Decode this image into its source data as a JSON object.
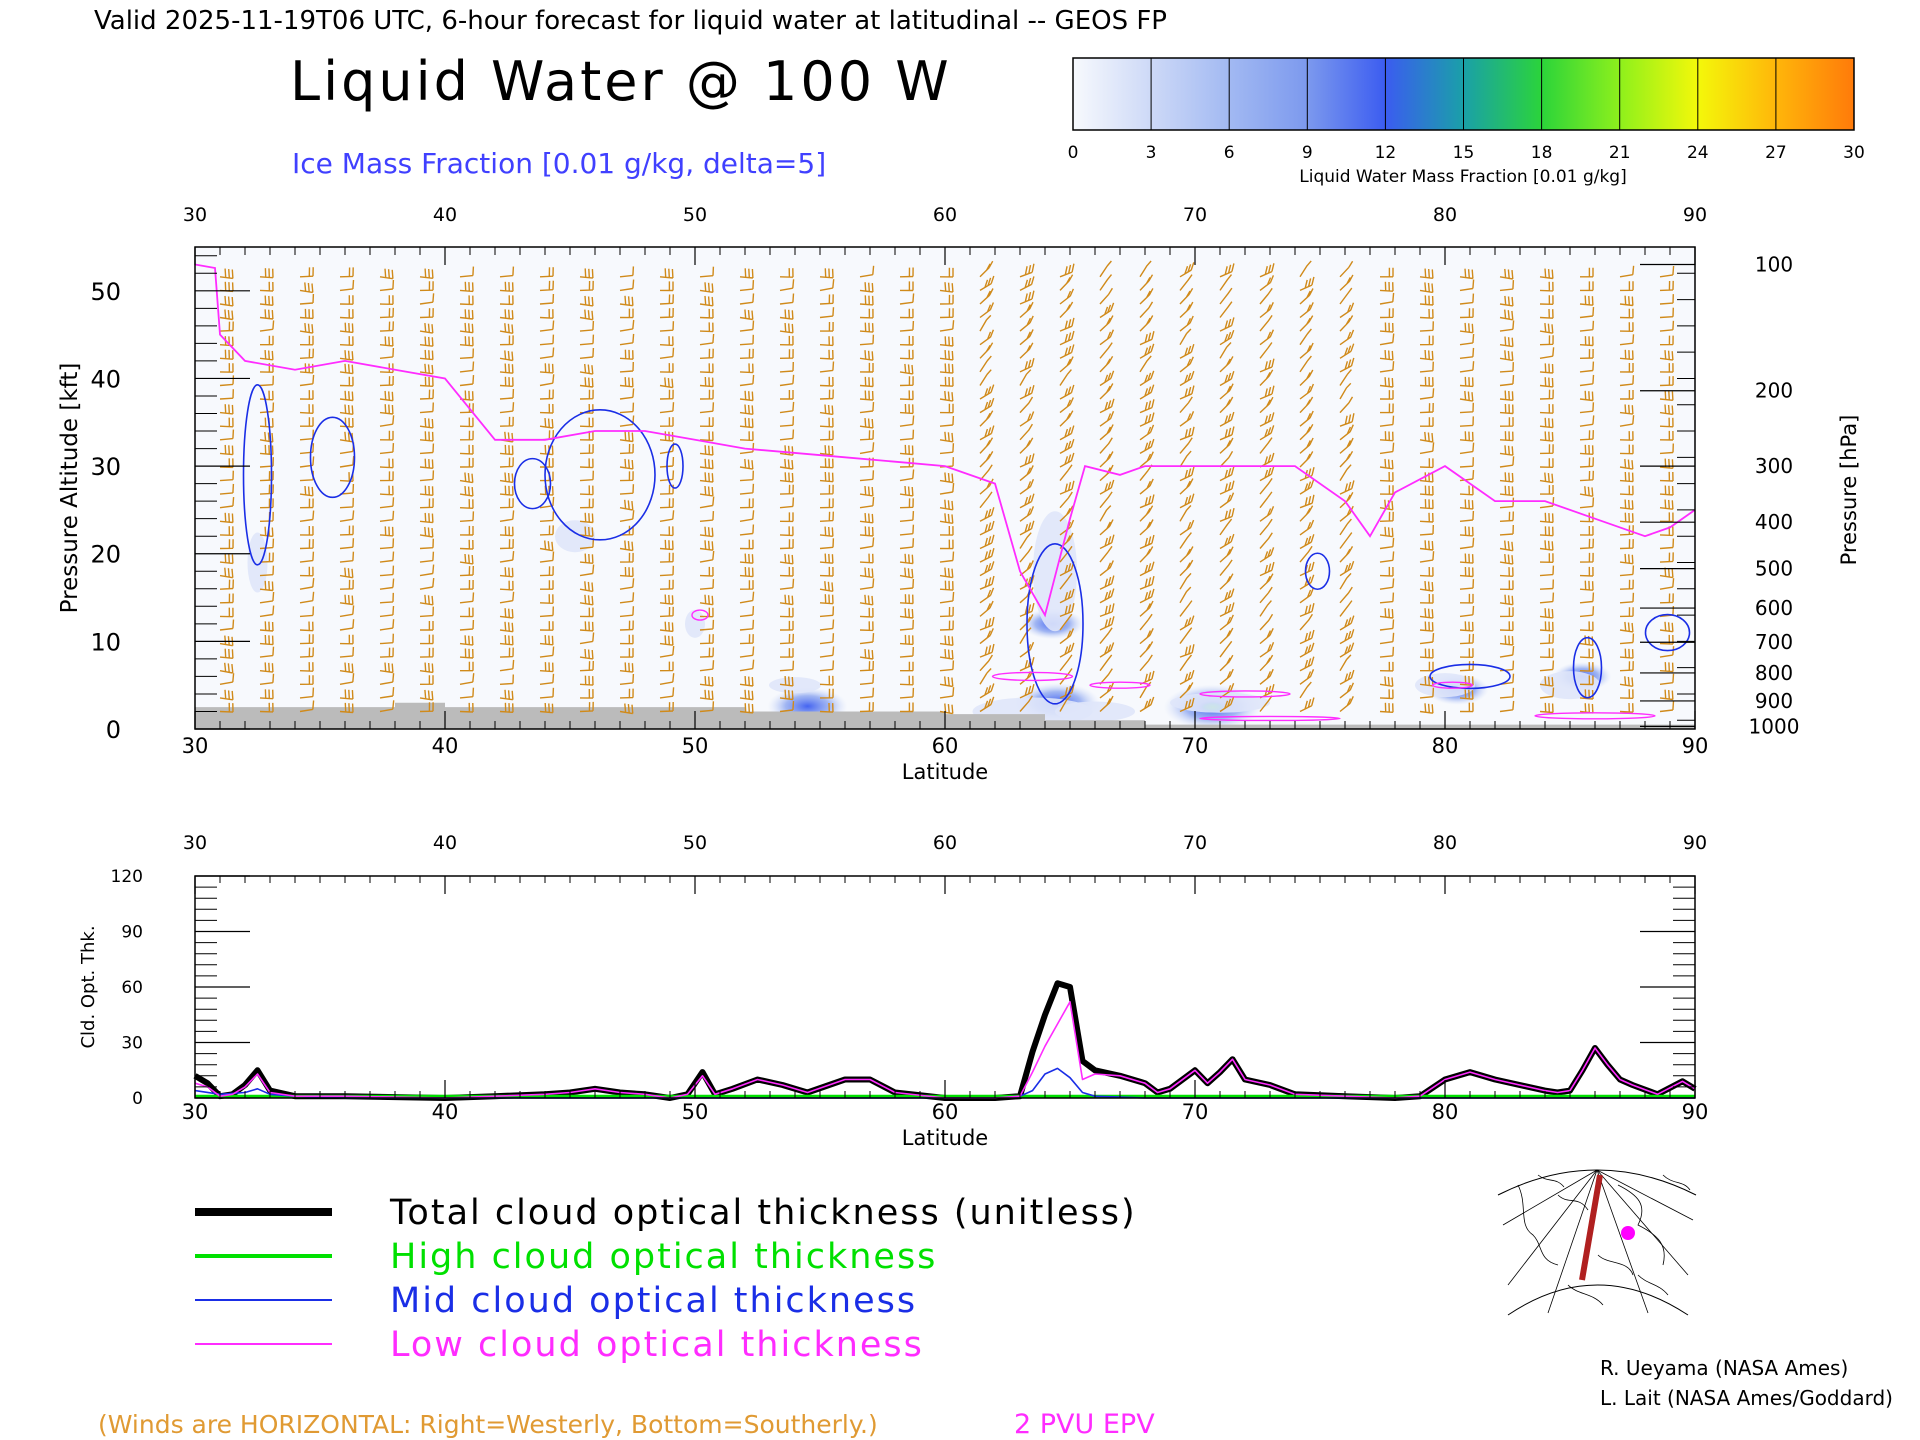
{
  "header": {
    "valid_line": "Valid 2025-11-19T06 UTC, 6-hour forecast for liquid water at latitudinal -- GEOS FP",
    "title": "Liquid Water @ 100 W",
    "subtitle": "Ice Mass Fraction [0.01 g/kg, delta=5]"
  },
  "colorbar": {
    "label": "Liquid Water Mass Fraction [0.01 g/kg]",
    "ticks": [
      "0",
      "3",
      "6",
      "9",
      "12",
      "15",
      "18",
      "21",
      "24",
      "27",
      "30"
    ],
    "colors": [
      "#f7f9fd",
      "#cdd9f7",
      "#a2b9f2",
      "#7c99ee",
      "#3b5cf0",
      "#1aa0a8",
      "#2bd43a",
      "#8ef01c",
      "#f4f80a",
      "#ffb60a",
      "#ff7a0a"
    ]
  },
  "legend": {
    "items": [
      {
        "label": "Total cloud optical thickness (unitless)",
        "color": "#000000"
      },
      {
        "label": "High cloud optical thickness",
        "color": "#00e000"
      },
      {
        "label": "Mid cloud optical thickness",
        "color": "#1a2ee6"
      },
      {
        "label": "Low cloud optical thickness",
        "color": "#ff2cff"
      }
    ]
  },
  "footer": {
    "winds_note": "(Winds are HORIZONTAL: Right=Westerly, Bottom=Southerly.)",
    "pv_note": "2 PVU EPV",
    "credit1": "R. Ueyama (NASA Ames)",
    "credit2": "L. Lait (NASA Ames/Goddard)"
  },
  "colors": {
    "wind": "#d08a1a",
    "epv": "#ff2cff",
    "ice": "#1a2ee6",
    "ground": "#bbbbbb",
    "winds_note": "#e09a33",
    "subtitle": "#4040ff",
    "map_track": "#b02020",
    "map_marker": "#ff00ff"
  },
  "icons": {
    "locator_map": "locator-map-icon"
  },
  "chart_data": [
    {
      "type": "heatmap",
      "title": "Liquid Water @ 100 W",
      "xlabel": "Latitude",
      "ylabel": "Pressure Altitude [kft]",
      "ylabel_right": "Pressure [hPa]",
      "xlim": [
        30,
        90
      ],
      "ylim": [
        0,
        55
      ],
      "x_ticks": [
        "30",
        "40",
        "50",
        "60",
        "70",
        "80",
        "90"
      ],
      "y_ticks": [
        "0",
        "10",
        "20",
        "30",
        "40",
        "50"
      ],
      "pressure_ticks": [
        {
          "label": "100",
          "kft": 53
        },
        {
          "label": "200",
          "kft": 38.6
        },
        {
          "label": "300",
          "kft": 30
        },
        {
          "label": "400",
          "kft": 23.6
        },
        {
          "label": "500",
          "kft": 18.3
        },
        {
          "label": "600",
          "kft": 13.8
        },
        {
          "label": "700",
          "kft": 9.9
        },
        {
          "label": "800",
          "kft": 6.4
        },
        {
          "label": "900",
          "kft": 3.2
        },
        {
          "label": "1000",
          "kft": 0.3
        }
      ],
      "epv_2pvu_kft": [
        [
          30,
          53
        ],
        [
          30.8,
          52.6
        ],
        [
          31,
          45
        ],
        [
          32,
          42
        ],
        [
          34,
          41
        ],
        [
          36,
          42
        ],
        [
          38,
          41
        ],
        [
          40,
          40
        ],
        [
          42,
          33
        ],
        [
          44,
          33
        ],
        [
          46,
          34
        ],
        [
          48,
          34
        ],
        [
          50,
          33
        ],
        [
          52,
          32
        ],
        [
          56,
          31
        ],
        [
          58,
          30.5
        ],
        [
          60,
          30
        ],
        [
          61,
          29
        ],
        [
          62,
          28
        ],
        [
          63,
          18
        ],
        [
          64,
          13
        ],
        [
          65,
          24
        ],
        [
          65.6,
          30
        ],
        [
          67,
          29
        ],
        [
          68,
          30
        ],
        [
          71,
          30
        ],
        [
          74,
          30
        ],
        [
          76,
          26
        ],
        [
          77,
          22
        ],
        [
          78,
          27
        ],
        [
          80,
          30
        ],
        [
          82,
          26
        ],
        [
          84,
          26
        ],
        [
          86,
          24
        ],
        [
          88,
          22
        ],
        [
          89,
          23
        ],
        [
          90,
          25
        ]
      ],
      "liquid_water_maxima": [
        {
          "lat": 54.5,
          "kft": 2.6,
          "value": 10
        },
        {
          "lat": 64.3,
          "kft": 12,
          "value": 6
        },
        {
          "lat": 64.5,
          "kft": 3,
          "value": 11
        },
        {
          "lat": 70.7,
          "kft": 2.5,
          "value": 14
        },
        {
          "lat": 80.5,
          "kft": 4.5,
          "value": 6
        },
        {
          "lat": 85.5,
          "kft": 6,
          "value": 5
        }
      ]
    },
    {
      "type": "line",
      "xlabel": "Latitude",
      "ylabel": "Cld. Opt. Thk.",
      "xlim": [
        30,
        90
      ],
      "ylim": [
        0,
        120
      ],
      "x_ticks": [
        "30",
        "40",
        "50",
        "60",
        "70",
        "80",
        "90"
      ],
      "y_ticks": [
        "0",
        "30",
        "60",
        "90",
        "120"
      ],
      "series": [
        {
          "name": "Total cloud optical thickness (unitless)",
          "x": [
            30,
            30.5,
            31,
            31.5,
            32,
            32.5,
            33,
            34,
            36,
            40,
            42,
            44,
            45,
            46,
            47,
            48,
            49,
            49.7,
            50.3,
            50.8,
            51.5,
            52.5,
            53.5,
            54.5,
            56,
            57,
            58,
            60,
            62,
            63,
            63.5,
            64,
            64.5,
            65,
            65.5,
            66,
            67,
            68,
            68.5,
            69,
            70,
            70.5,
            71,
            71.5,
            72,
            73,
            74,
            76,
            78,
            79,
            80,
            81,
            82,
            84,
            84.5,
            85,
            85.5,
            86,
            86.5,
            87,
            87.5,
            88.5,
            89.5,
            90
          ],
          "y": [
            12,
            8,
            1,
            2,
            7,
            15,
            4,
            1,
            1,
            0,
            1,
            2,
            3,
            5,
            3,
            2,
            0,
            2,
            14,
            2,
            5,
            10,
            7,
            3,
            10,
            10,
            3,
            0,
            0,
            1,
            25,
            45,
            62,
            60,
            20,
            15,
            12,
            8,
            3,
            5,
            15,
            8,
            14,
            21,
            10,
            7,
            2,
            1,
            0,
            1,
            10,
            14,
            10,
            4,
            3,
            4,
            15,
            27,
            18,
            10,
            7,
            2,
            9,
            5
          ]
        },
        {
          "name": "High cloud optical thickness",
          "x": [
            30,
            32,
            34,
            40,
            45,
            50,
            60,
            70,
            80,
            90
          ],
          "y": [
            1,
            1,
            1,
            1,
            1,
            1,
            1,
            1,
            1,
            1
          ]
        },
        {
          "name": "Mid cloud optical thickness",
          "x": [
            30,
            31,
            32,
            32.5,
            33,
            34,
            36,
            40,
            45,
            50,
            60,
            62,
            63,
            63.5,
            64,
            64.5,
            65,
            65.5,
            66,
            68,
            70,
            75,
            80,
            85,
            90
          ],
          "y": [
            4,
            2,
            3,
            5,
            2,
            1,
            0,
            0,
            0,
            0,
            0,
            0,
            1,
            4,
            13,
            16,
            11,
            3,
            1,
            0,
            0,
            0,
            0,
            0,
            0
          ]
        },
        {
          "name": "Low cloud optical thickness",
          "x": [
            30,
            30.5,
            31,
            31.5,
            32,
            32.5,
            33,
            34,
            36,
            40,
            42,
            44,
            45,
            46,
            47,
            48,
            49,
            49.7,
            50.3,
            50.8,
            51.5,
            52.5,
            53.5,
            54.5,
            56,
            57,
            58,
            60,
            62,
            63,
            63.5,
            64,
            64.5,
            65,
            65.5,
            66,
            67,
            68,
            68.5,
            69,
            70,
            70.5,
            71,
            71.5,
            72,
            73,
            74,
            76,
            78,
            79,
            80,
            81,
            82,
            84,
            84.5,
            85,
            85.5,
            86,
            86.5,
            87,
            87.5,
            88.5,
            89.5,
            90
          ],
          "y": [
            8,
            6,
            1,
            2,
            6,
            13,
            3,
            1,
            1,
            0,
            1,
            2,
            3,
            5,
            3,
            2,
            0,
            2,
            12,
            2,
            5,
            10,
            7,
            3,
            10,
            10,
            3,
            0,
            0,
            1,
            14,
            28,
            40,
            52,
            10,
            13,
            12,
            8,
            3,
            5,
            15,
            8,
            14,
            21,
            10,
            7,
            2,
            1,
            0,
            1,
            10,
            14,
            10,
            4,
            3,
            4,
            15,
            27,
            18,
            10,
            7,
            2,
            9,
            5
          ]
        }
      ]
    }
  ]
}
